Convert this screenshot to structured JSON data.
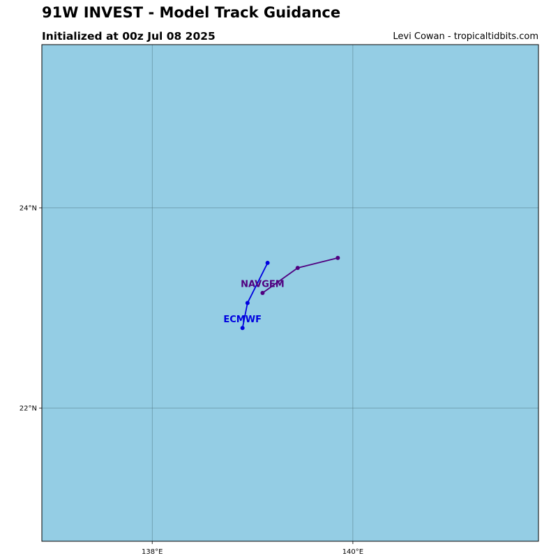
{
  "header": {
    "title": "91W INVEST - Model Track Guidance",
    "subtitle": "Initialized at 00z Jul 08 2025",
    "credit": "Levi Cowan - tropicaltidbits.com"
  },
  "colors": {
    "ocean": "#94cde4",
    "gridline": "#4a6f7a",
    "frame": "#000000"
  },
  "chart_data": {
    "type": "map-tracks",
    "lon_range": [
      136.9,
      141.85
    ],
    "lat_range": [
      20.67,
      25.63
    ],
    "x_ticks": [
      {
        "value": 138,
        "label": "138°E"
      },
      {
        "value": 140,
        "label": "140°E"
      }
    ],
    "y_ticks": [
      {
        "value": 24,
        "label": "24°N"
      },
      {
        "value": 22,
        "label": "22°N"
      }
    ],
    "grid": true,
    "tracks": [
      {
        "name": "ECMWF",
        "color": "#0000e0",
        "points": [
          [
            138.9,
            22.8
          ],
          [
            138.95,
            23.05
          ],
          [
            139.15,
            23.45
          ]
        ],
        "label_anchor": [
          138.9,
          22.89
        ]
      },
      {
        "name": "NAVGEM",
        "color": "#500080",
        "points": [
          [
            139.1,
            23.15
          ],
          [
            139.45,
            23.4
          ],
          [
            139.85,
            23.5
          ]
        ],
        "label_anchor": [
          139.1,
          23.24
        ]
      }
    ]
  }
}
